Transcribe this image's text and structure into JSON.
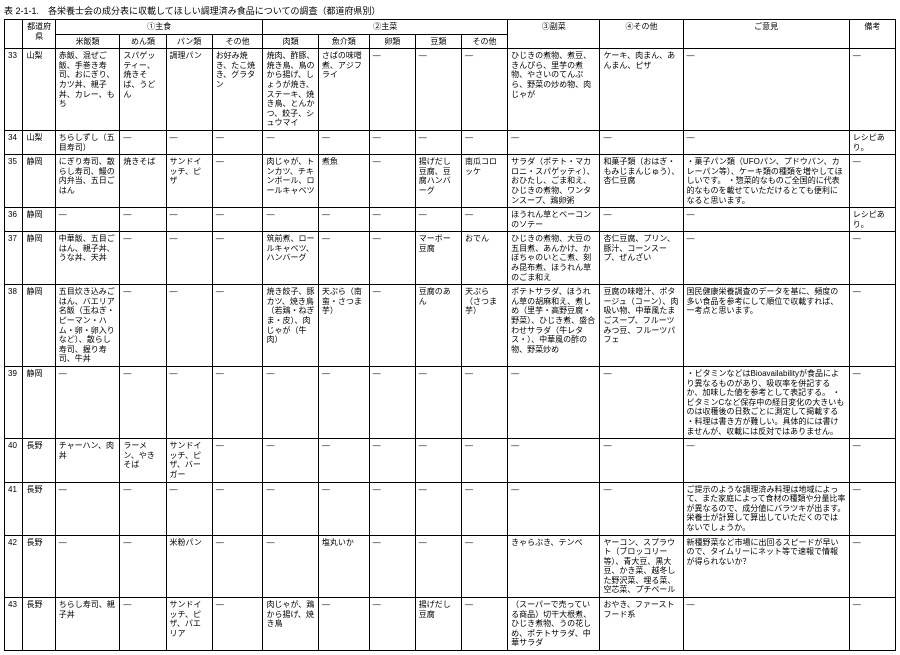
{
  "title": "表 2-1-1.　各栄養士会の成分表に収載してほしい調理済み食品についての調査（都道府県別）",
  "headers": {
    "pref": "都道府県",
    "group1": "①主食",
    "rice": "米飯類",
    "noodle": "めん類",
    "bread": "パン類",
    "other1": "その他",
    "group2": "②主菜",
    "meat": "肉類",
    "fish": "魚介類",
    "egg": "卵類",
    "bean": "豆類",
    "other2": "その他",
    "side": "③副菜",
    "misc": "④その他",
    "opinion": "ご意見",
    "remark": "備考"
  },
  "rows": [
    {
      "num": "33",
      "pref": "山梨",
      "rice": "赤飯、混ぜご飯、手巻き寿司、おにぎり、カツ丼、親子丼、カレー、もち",
      "noodle": "スパゲッティー、焼きそば、うどん",
      "bread": "調理パン",
      "other1": "お好み焼き、たこ焼き、グラタン",
      "meat": "焼肉、酢豚、焼き鳥、鳥のから揚げ、しょうが焼き、ステーキ、焼き鳥、とんかつ、餃子、シュウマイ",
      "fish": "さばの味噌煮、アジフライ",
      "egg": "—",
      "bean": "—",
      "other2": "—",
      "side": "ひじきの煮物、煮豆、きんぴら、里芋の煮物、やさいのてんぷら、野菜の炒め物、肉じゃが",
      "misc": "ケーキ、肉まん、あんまん、ピザ",
      "opinion": "—",
      "remark": "—"
    },
    {
      "num": "34",
      "pref": "山梨",
      "rice": "ちらしずし（五目寿司）",
      "noodle": "—",
      "bread": "—",
      "other1": "—",
      "meat": "—",
      "fish": "—",
      "egg": "—",
      "bean": "—",
      "other2": "—",
      "side": "—",
      "misc": "—",
      "opinion": "—",
      "remark": "レシピあり。"
    },
    {
      "num": "35",
      "pref": "静岡",
      "rice": "にぎり寿司、散らし寿司、鰻の内弁当、五日ごはん",
      "noodle": "焼きそば",
      "bread": "サンドイッチ、ピザ",
      "other1": "—",
      "meat": "肉じゃが、トンカツ、チキンボール、ロールキャベツ",
      "fish": "煮魚",
      "egg": "—",
      "bean": "揚げだし豆腐、豆腐ハンバーグ",
      "other2": "南瓜コロッケ",
      "side": "サラダ（ポテト・マカロニ・スパゲッティ）、おひたし、ごま和え、ひじきの煮物、ワンタンスープ、鶏卵粥",
      "misc": "和菓子類（おはぎ・もみじまんじゅう）、杏仁豆腐",
      "opinion": "・菓子パン類（UFOパン、プドウパン、カレーパン等）、ケーキ類の種類を増やしてほしいです。\n・惣菜的なものご全国的に代表的なものを載せていただけるとても便利になると思います。",
      "remark": "—"
    },
    {
      "num": "36",
      "pref": "静岡",
      "rice": "—",
      "noodle": "—",
      "bread": "—",
      "other1": "—",
      "meat": "—",
      "fish": "—",
      "egg": "—",
      "bean": "—",
      "other2": "—",
      "side": "ほうれん草とベーコンのソテー",
      "misc": "—",
      "opinion": "—",
      "remark": "レシピあり。"
    },
    {
      "num": "37",
      "pref": "静岡",
      "rice": "中華飯、五目ごはん、親子丼、うな丼、天丼",
      "noodle": "—",
      "bread": "—",
      "other1": "—",
      "meat": "筑前煮、ロールキャベツ、ハンバーグ",
      "fish": "—",
      "egg": "—",
      "bean": "マーボー豆腐",
      "other2": "おでん",
      "side": "ひじきの煮物、大豆の五目煮、あんかけ、かぼちゃのいとこ煮、刻み昆布煮、ほうれん草のごま和え",
      "misc": "杏仁豆腐、プリン、豚汁、コーンスープ、ぜんざい",
      "opinion": "—",
      "remark": "—"
    },
    {
      "num": "38",
      "pref": "静岡",
      "rice": "五目炊き込みごはん、バエリア名飯（玉ねぎ・ピーマン・ハム・卵・卵入りなど）、散らし寿司、握り寿司、牛丼",
      "noodle": "—",
      "bread": "—",
      "other1": "—",
      "meat": "焼き餃子、豚カツ、焼き鳥（若鶏・ねぎま・皮）、肉じゃが（牛肉）",
      "fish": "天ぷら（南蛮・さつま芋）",
      "egg": "—",
      "bean": "豆腐のあん",
      "other2": "天ぷら（さつま芋）",
      "side": "ポテトサラダ、ほうれん草の胡麻和え、煮しめ（里芋・高野豆腐・野菜）、ひじき煮、盛合わせサラダ（牛レタス・）、中華風の酢の物、野菜炒め",
      "misc": "豆腐の味噌汁、ポタージュ（コーン）、肉吸い物、中華風たまごスープ、フルーツみつ豆、フルーツパフェ",
      "opinion": "国民健康栄養調査のデータを基に、頻度の多い食品を参考にして順位で収載すれば、一考点と思います。",
      "remark": "—"
    },
    {
      "num": "39",
      "pref": "静岡",
      "rice": "—",
      "noodle": "—",
      "bread": "—",
      "other1": "—",
      "meat": "—",
      "fish": "—",
      "egg": "—",
      "bean": "—",
      "other2": "—",
      "side": "—",
      "misc": "—",
      "opinion": "・ビタミンなどはBioavailabilityが食品により異なるものがあり、吸収率を併記するか、加味した値を参考として表記する。\n・ビタミンCなど保存中の経日変化の大きいものは収穫後の日数ごとに測定して掲載する\n・料理は書き方が難しい。具体的には書けませんが、収載には反対ではありません。",
      "remark": "—"
    },
    {
      "num": "40",
      "pref": "長野",
      "rice": "チャーハン、肉丼",
      "noodle": "ラーメン、やきそば",
      "bread": "サンドイッチ、ピザ、バーガー",
      "other1": "—",
      "meat": "—",
      "fish": "—",
      "egg": "—",
      "bean": "—",
      "other2": "—",
      "side": "—",
      "misc": "—",
      "opinion": "—",
      "remark": "—"
    },
    {
      "num": "41",
      "pref": "長野",
      "rice": "—",
      "noodle": "—",
      "bread": "—",
      "other1": "—",
      "meat": "—",
      "fish": "—",
      "egg": "—",
      "bean": "—",
      "other2": "—",
      "side": "—",
      "misc": "—",
      "opinion": "ご提示のような調理済み料理は地域によって、また家庭によって食材の種類や分量比率が異なるので、成分値にバラツキが出ます。栄養士が計算して算出していただくのではないでしょうか。",
      "remark": "—"
    },
    {
      "num": "42",
      "pref": "長野",
      "rice": "—",
      "noodle": "—",
      "bread": "米粉パン",
      "other1": "—",
      "meat": "—",
      "fish": "塩丸いか",
      "egg": "—",
      "bean": "—",
      "other2": "—",
      "side": "きゃらぶき、テンペ",
      "misc": "ヤーコン、スプラウト（ブロッコリー等）、青大豆、黒大豆、かき菜、越冬した野沢菜、埋る菜、空芯菜、プチベール",
      "opinion": "新種野菜など市場に出回るスピードが早いので、タイムリーにネット等で速報で情報が得られないか？",
      "remark": "—"
    },
    {
      "num": "43",
      "pref": "長野",
      "rice": "ちらし寿司、親子丼",
      "noodle": "—",
      "bread": "サンドイッチ、ピザ、パエリア",
      "other1": "—",
      "meat": "肉じゃが、鶏から揚げ、焼き鳥",
      "fish": "—",
      "egg": "—",
      "bean": "揚げだし豆腐",
      "other2": "—",
      "side": "（スーパーで売っている商品）切干大根煮、ひじき煮物、うの花しめ、ポテトサラダ、中華サラダ",
      "misc": "おやき、ファーストフード系",
      "opinion": "—",
      "remark": "—"
    }
  ]
}
